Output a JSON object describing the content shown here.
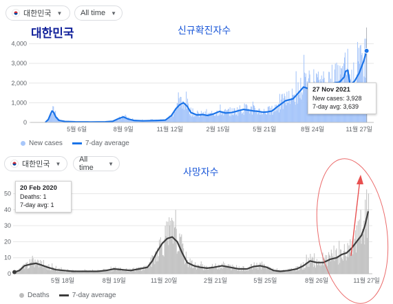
{
  "top": {
    "country_pill": "대한민국",
    "time_pill": "All time",
    "overlay_title": "대한민국",
    "chart_heading": "신규확진자수",
    "legend_bars": "New cases",
    "legend_line": "7-day average",
    "tooltip": {
      "date": "27 Nov 2021",
      "line1": "New cases: 3,928",
      "line2": "7-day avg: 3,639"
    }
  },
  "bottom": {
    "country_pill": "대한민국",
    "time_pill": "All time",
    "chart_heading": "사망자수",
    "legend_bars": "Deaths",
    "legend_line": "7-day average",
    "tooltip": {
      "date": "20 Feb 2020",
      "line1": "Deaths: 1",
      "line2": "7-day avg: 1"
    }
  },
  "colors": {
    "cases_bar": "#a8c7fa",
    "cases_line": "#1a73e8",
    "deaths_bar": "#c4c4c4",
    "deaths_line": "#3c3c3c",
    "heading_blue": "#1a57d8",
    "overlay_navy": "#10209a",
    "annotation": "#e85050"
  },
  "chart_data": [
    {
      "type": "area",
      "title": "신규확진자수",
      "series": [
        {
          "name": "New cases",
          "kind": "bar"
        },
        {
          "name": "7-day average",
          "kind": "line"
        }
      ],
      "x_ticks": [
        "5월 6일",
        "8월 9일",
        "11월 12일",
        "2월 15일",
        "5월 21일",
        "8월 24일",
        "11월 27일"
      ],
      "y_ticks": [
        "0",
        "1,000",
        "2,000",
        "3,000",
        "4,000"
      ],
      "ylim": [
        0,
        4300
      ],
      "x_range_months": [
        0,
        22.6
      ],
      "x_tick_months": [
        3.1,
        6.2,
        9.3,
        12.5,
        15.6,
        18.8,
        21.9
      ],
      "avg_points": [
        [
          1.0,
          0
        ],
        [
          1.2,
          150
        ],
        [
          1.35,
          420
        ],
        [
          1.45,
          580
        ],
        [
          1.55,
          520
        ],
        [
          1.7,
          280
        ],
        [
          1.9,
          110
        ],
        [
          2.3,
          50
        ],
        [
          3.0,
          30
        ],
        [
          4.0,
          25
        ],
        [
          5.0,
          30
        ],
        [
          5.5,
          60
        ],
        [
          5.9,
          200
        ],
        [
          6.2,
          280
        ],
        [
          6.5,
          180
        ],
        [
          6.9,
          100
        ],
        [
          7.5,
          80
        ],
        [
          8.5,
          100
        ],
        [
          9.0,
          120
        ],
        [
          9.4,
          350
        ],
        [
          9.7,
          700
        ],
        [
          9.95,
          900
        ],
        [
          10.2,
          1000
        ],
        [
          10.45,
          820
        ],
        [
          10.7,
          500
        ],
        [
          11.1,
          380
        ],
        [
          11.5,
          400
        ],
        [
          11.8,
          350
        ],
        [
          12.2,
          430
        ],
        [
          12.6,
          560
        ],
        [
          13.0,
          480
        ],
        [
          13.4,
          500
        ],
        [
          13.8,
          580
        ],
        [
          14.2,
          660
        ],
        [
          14.6,
          620
        ],
        [
          14.9,
          580
        ],
        [
          15.2,
          560
        ],
        [
          15.5,
          520
        ],
        [
          15.8,
          540
        ],
        [
          16.1,
          580
        ],
        [
          16.5,
          820
        ],
        [
          17.0,
          1100
        ],
        [
          17.5,
          1200
        ],
        [
          17.8,
          1450
        ],
        [
          18.2,
          1800
        ],
        [
          18.6,
          1700
        ],
        [
          19.0,
          1650
        ],
        [
          19.4,
          1700
        ],
        [
          19.8,
          1900
        ],
        [
          20.2,
          2000
        ],
        [
          20.6,
          2050
        ],
        [
          20.9,
          2300
        ],
        [
          21.0,
          2600
        ],
        [
          21.15,
          2650
        ],
        [
          21.3,
          1900
        ],
        [
          21.6,
          2100
        ],
        [
          21.9,
          2500
        ],
        [
          22.2,
          3100
        ],
        [
          22.4,
          3639
        ]
      ],
      "bar_noise": 1.18
    },
    {
      "type": "area",
      "title": "사망자수",
      "series": [
        {
          "name": "Deaths",
          "kind": "bar"
        },
        {
          "name": "7-day average",
          "kind": "line"
        }
      ],
      "x_ticks": [
        "5월 18일",
        "8월 19일",
        "11월 20일",
        "2월 21일",
        "5월 25일",
        "8월 26일",
        "11월 27일"
      ],
      "y_ticks": [
        "0",
        "10",
        "20",
        "30",
        "40",
        "50"
      ],
      "ylim": [
        0,
        58
      ],
      "x_range_months": [
        0,
        21.3
      ],
      "x_tick_months": [
        2.9,
        6.0,
        9.0,
        12.1,
        15.1,
        18.2,
        21.2
      ],
      "avg_points": [
        [
          0,
          1
        ],
        [
          0.3,
          2
        ],
        [
          0.6,
          5
        ],
        [
          1.0,
          6
        ],
        [
          1.3,
          6.5
        ],
        [
          1.6,
          5.5
        ],
        [
          2.0,
          4
        ],
        [
          2.5,
          2.5
        ],
        [
          3.0,
          2
        ],
        [
          3.5,
          1.5
        ],
        [
          4.5,
          1.5
        ],
        [
          5.0,
          1.5
        ],
        [
          5.5,
          2
        ],
        [
          6.0,
          3
        ],
        [
          6.5,
          2.5
        ],
        [
          7.0,
          2
        ],
        [
          7.5,
          3
        ],
        [
          8.0,
          4
        ],
        [
          8.3,
          8
        ],
        [
          8.6,
          14
        ],
        [
          8.9,
          19
        ],
        [
          9.2,
          22
        ],
        [
          9.5,
          23
        ],
        [
          9.8,
          20
        ],
        [
          10.1,
          13
        ],
        [
          10.4,
          7
        ],
        [
          10.8,
          5
        ],
        [
          11.2,
          4
        ],
        [
          11.6,
          3.5
        ],
        [
          12.0,
          4
        ],
        [
          12.5,
          5
        ],
        [
          13.0,
          4
        ],
        [
          13.5,
          3
        ],
        [
          14.0,
          3
        ],
        [
          14.4,
          4.5
        ],
        [
          14.8,
          5
        ],
        [
          15.2,
          4
        ],
        [
          15.6,
          2
        ],
        [
          16.0,
          1.5
        ],
        [
          16.5,
          2
        ],
        [
          17.0,
          3
        ],
        [
          17.4,
          5
        ],
        [
          17.8,
          8
        ],
        [
          18.2,
          7
        ],
        [
          18.6,
          7
        ],
        [
          19.0,
          9
        ],
        [
          19.4,
          10
        ],
        [
          19.7,
          12
        ],
        [
          20.0,
          13
        ],
        [
          20.3,
          16
        ],
        [
          20.6,
          20
        ],
        [
          20.9,
          24
        ],
        [
          21.1,
          30
        ],
        [
          21.3,
          39
        ]
      ],
      "bar_noise": 1.35
    }
  ]
}
